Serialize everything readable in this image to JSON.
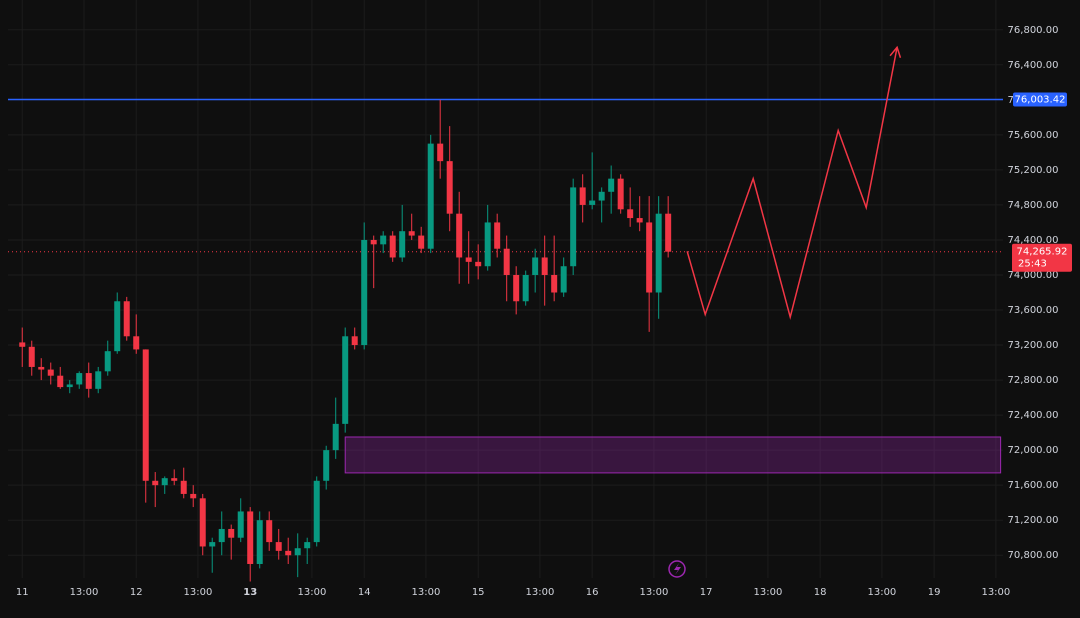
{
  "chart_data": {
    "type": "candlestick",
    "x": [
      0,
      2,
      4,
      6,
      8,
      10,
      12,
      14,
      16,
      18,
      20,
      22,
      24,
      26,
      28,
      30,
      32,
      34,
      36,
      38,
      40,
      42,
      44,
      46,
      48,
      50,
      52,
      54,
      56,
      58,
      60,
      62,
      64,
      66,
      68,
      70,
      72,
      74,
      76,
      78,
      80,
      82,
      84,
      86,
      88,
      90,
      92,
      94,
      96,
      98,
      100,
      102,
      104,
      106,
      108,
      110,
      112,
      114,
      116,
      118,
      120,
      122,
      124,
      126,
      128,
      130,
      132,
      134,
      136
    ],
    "ohlc": [
      [
        73230,
        73400,
        72950,
        73180
      ],
      [
        73180,
        73250,
        72850,
        72950
      ],
      [
        72950,
        73050,
        72800,
        72920
      ],
      [
        72920,
        73000,
        72750,
        72850
      ],
      [
        72850,
        72950,
        72700,
        72720
      ],
      [
        72720,
        72800,
        72650,
        72750
      ],
      [
        72750,
        72900,
        72700,
        72880
      ],
      [
        72880,
        73000,
        72600,
        72700
      ],
      [
        72700,
        72950,
        72650,
        72900
      ],
      [
        72900,
        73250,
        72850,
        73130
      ],
      [
        73130,
        73800,
        73100,
        73700
      ],
      [
        73700,
        73750,
        73250,
        73300
      ],
      [
        73300,
        73550,
        73100,
        73150
      ],
      [
        73150,
        73150,
        71400,
        71650
      ],
      [
        71650,
        71750,
        71350,
        71600
      ],
      [
        71600,
        71700,
        71500,
        71680
      ],
      [
        71680,
        71780,
        71600,
        71650
      ],
      [
        71650,
        71800,
        71450,
        71500
      ],
      [
        71500,
        71600,
        71350,
        71450
      ],
      [
        71450,
        71500,
        70800,
        70900
      ],
      [
        70900,
        71000,
        70600,
        70950
      ],
      [
        70950,
        71300,
        70800,
        71100
      ],
      [
        71100,
        71150,
        70750,
        71000
      ],
      [
        71000,
        71450,
        70950,
        71300
      ],
      [
        71300,
        71350,
        70500,
        70700
      ],
      [
        70700,
        71300,
        70650,
        71200
      ],
      [
        71200,
        71300,
        70850,
        70950
      ],
      [
        70950,
        71100,
        70750,
        70850
      ],
      [
        70850,
        71000,
        70700,
        70800
      ],
      [
        70800,
        71050,
        70550,
        70880
      ],
      [
        70880,
        71000,
        70700,
        70950
      ],
      [
        70950,
        71700,
        70900,
        71650
      ],
      [
        71650,
        72050,
        71550,
        72000
      ],
      [
        72000,
        72600,
        71900,
        72300
      ],
      [
        72300,
        73400,
        72200,
        73300
      ],
      [
        73300,
        73400,
        73150,
        73200
      ],
      [
        73200,
        74600,
        73150,
        74400
      ],
      [
        74400,
        74450,
        73850,
        74350
      ],
      [
        74350,
        74500,
        74250,
        74450
      ],
      [
        74450,
        74500,
        74150,
        74200
      ],
      [
        74200,
        74800,
        74150,
        74500
      ],
      [
        74500,
        74700,
        74400,
        74450
      ],
      [
        74450,
        74550,
        74250,
        74300
      ],
      [
        74300,
        75600,
        74250,
        75500
      ],
      [
        75500,
        76000,
        75100,
        75300
      ],
      [
        75300,
        75700,
        74500,
        74700
      ],
      [
        74700,
        74950,
        73900,
        74200
      ],
      [
        74200,
        74500,
        73900,
        74150
      ],
      [
        74150,
        74350,
        73950,
        74100
      ],
      [
        74100,
        74800,
        74050,
        74600
      ],
      [
        74600,
        74700,
        74200,
        74300
      ],
      [
        74300,
        74450,
        73700,
        74000
      ],
      [
        74000,
        74100,
        73550,
        73700
      ],
      [
        73700,
        74050,
        73650,
        74000
      ],
      [
        74000,
        74300,
        73800,
        74200
      ],
      [
        74200,
        74450,
        73650,
        74000
      ],
      [
        74000,
        74450,
        73700,
        73800
      ],
      [
        73800,
        74200,
        73750,
        74100
      ],
      [
        74100,
        75100,
        74000,
        75000
      ],
      [
        75000,
        75150,
        74600,
        74800
      ],
      [
        74800,
        75400,
        74750,
        74850
      ],
      [
        74850,
        75000,
        74600,
        74950
      ],
      [
        74950,
        75250,
        74700,
        75100
      ],
      [
        75100,
        75150,
        74700,
        74750
      ],
      [
        74750,
        75000,
        74550,
        74650
      ],
      [
        74650,
        74900,
        74500,
        74600
      ],
      [
        74600,
        74900,
        73350,
        73800
      ],
      [
        73800,
        74900,
        73500,
        74700
      ],
      [
        74700,
        74900,
        74200,
        74265.92
      ]
    ],
    "up_color": "#089981",
    "down_color": "#f23645",
    "xlim": [
      -3,
      206.5
    ],
    "ylim": [
      70540,
      77140
    ],
    "xticks": [
      {
        "value": 0,
        "label": "11"
      },
      {
        "value": 13,
        "label": "13:00"
      },
      {
        "value": 24,
        "label": "12"
      },
      {
        "value": 37,
        "label": "13:00"
      },
      {
        "value": 48,
        "label": "13"
      },
      {
        "value": 61,
        "label": "13:00"
      },
      {
        "value": 72,
        "label": "14"
      },
      {
        "value": 85,
        "label": "13:00"
      },
      {
        "value": 96,
        "label": "15"
      },
      {
        "value": 109,
        "label": "13:00"
      },
      {
        "value": 120,
        "label": "16"
      },
      {
        "value": 133,
        "label": "13:00"
      },
      {
        "value": 144,
        "label": "17"
      },
      {
        "value": 157,
        "label": "13:00"
      },
      {
        "value": 168,
        "label": "18"
      },
      {
        "value": 181,
        "label": "13:00"
      },
      {
        "value": 192,
        "label": "19"
      },
      {
        "value": 205,
        "label": "13:00"
      }
    ],
    "yticks": [
      {
        "value": 70800,
        "label": "70,800.00"
      },
      {
        "value": 71200,
        "label": "71,200.00"
      },
      {
        "value": 71600,
        "label": "71,600.00"
      },
      {
        "value": 72000,
        "label": "72,000.00"
      },
      {
        "value": 72400,
        "label": "72,400.00"
      },
      {
        "value": 72800,
        "label": "72,800.00"
      },
      {
        "value": 73200,
        "label": "73,200.00"
      },
      {
        "value": 73600,
        "label": "73,600.00"
      },
      {
        "value": 74000,
        "label": "74,000.00"
      },
      {
        "value": 74400,
        "label": "74,400.00"
      },
      {
        "value": 74800,
        "label": "74,800.00"
      },
      {
        "value": 75200,
        "label": "75,200.00"
      },
      {
        "value": 75600,
        "label": "75,600.00"
      },
      {
        "value": 76000,
        "label": "76,000.00"
      },
      {
        "value": 76400,
        "label": "76,400.00"
      },
      {
        "value": 76800,
        "label": "76,800.00"
      }
    ],
    "grid": true,
    "level_line": {
      "value": 76003.42,
      "label": "76,003.42",
      "color": "#2962ff"
    },
    "last_price": {
      "value": 74265.92,
      "label": "74,265.92",
      "countdown": "25:43",
      "color": "#f23645"
    },
    "zone": {
      "x0": 68,
      "x1": 206,
      "top": 72150,
      "bottom": 71740,
      "color": "#9c27b0"
    },
    "projection": {
      "x": [
        140,
        143.8,
        153.9,
        161.7,
        171.8,
        177.7,
        184.2
      ],
      "y": [
        74270,
        73550,
        75100,
        73520,
        75650,
        74770,
        76600
      ],
      "color": "#f23645"
    }
  }
}
